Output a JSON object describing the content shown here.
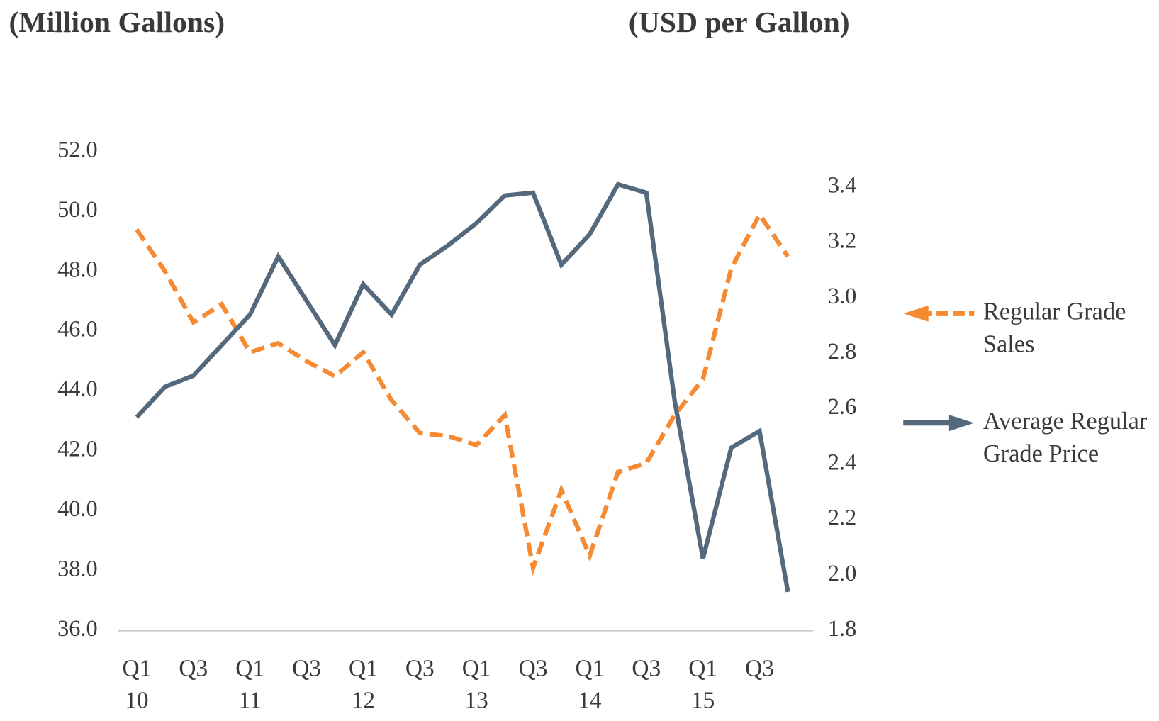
{
  "chart_data": {
    "type": "line",
    "y_axis_label": "(Million Gallons)",
    "y2_axis_label": "(USD per Gallon)",
    "categories": [
      [
        "Q1",
        "10"
      ],
      null,
      [
        "Q3"
      ],
      null,
      [
        "Q1",
        "11"
      ],
      null,
      [
        "Q3"
      ],
      null,
      [
        "Q1",
        "12"
      ],
      null,
      [
        "Q3"
      ],
      null,
      [
        "Q1",
        "13"
      ],
      null,
      [
        "Q3"
      ],
      null,
      [
        "Q1",
        "14"
      ],
      null,
      [
        "Q3"
      ],
      null,
      [
        "Q1",
        "15"
      ],
      null,
      [
        "Q3"
      ],
      null
    ],
    "ylim": [
      36,
      52
    ],
    "yticks": [
      {
        "value": 36,
        "label": "36.0"
      },
      {
        "value": 38,
        "label": "38.0"
      },
      {
        "value": 40,
        "label": "40.0"
      },
      {
        "value": 42,
        "label": "42.0"
      },
      {
        "value": 44,
        "label": "44.0"
      },
      {
        "value": 46,
        "label": "46.0"
      },
      {
        "value": 48,
        "label": "48.0"
      },
      {
        "value": 50,
        "label": "50.0"
      },
      {
        "value": 52,
        "label": "52.0"
      }
    ],
    "y2lim": [
      1.8,
      3.528
    ],
    "y2ticks": [
      1.8,
      {
        "value": 2,
        "label": "2.0"
      },
      2.2,
      2.4,
      2.6,
      2.8,
      {
        "value": 3,
        "label": "3.0"
      },
      3.2,
      3.4
    ],
    "legend": "right",
    "series": [
      {
        "name": "Regular Grade Sales",
        "color": "#f58a33",
        "dashed": true,
        "axis": "y",
        "values": [
          49.4,
          48.0,
          46.3,
          46.9,
          45.3,
          45.6,
          45.0,
          44.5,
          45.3,
          43.7,
          42.6,
          42.5,
          42.2,
          43.2,
          38.1,
          40.7,
          38.5,
          41.3,
          41.6,
          43.2,
          44.4,
          48.1,
          49.9,
          48.5
        ]
      },
      {
        "name": "Average Regular Grade Price",
        "color": "#55697c",
        "dashed": false,
        "axis": "y2",
        "values": [
          2.57,
          2.68,
          2.72,
          2.83,
          2.94,
          3.15,
          2.99,
          2.83,
          3.05,
          2.94,
          3.12,
          3.19,
          3.27,
          3.37,
          3.38,
          3.12,
          3.23,
          3.41,
          3.38,
          2.63,
          2.06,
          2.46,
          2.52,
          1.94
        ]
      }
    ]
  }
}
